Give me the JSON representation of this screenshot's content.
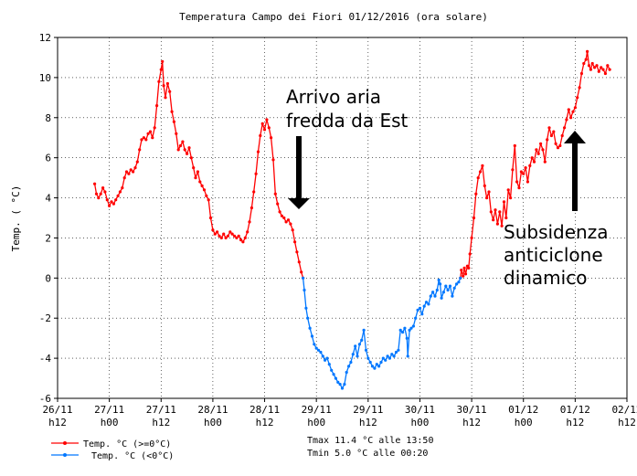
{
  "chart_data": {
    "type": "line",
    "title": "Temperatura Campo dei Fiori 01/12/2016 (ora solare)",
    "ylabel": "Temp. ( °C)",
    "xlabel": "",
    "ylim": [
      -6,
      12
    ],
    "yticks": [
      -6,
      -4,
      -2,
      0,
      2,
      4,
      6,
      8,
      10,
      12
    ],
    "xlim": [
      0,
      132
    ],
    "x_ticks": [
      {
        "x": 0,
        "line1": "26/11",
        "line2": "h12"
      },
      {
        "x": 12,
        "line1": "27/11",
        "line2": "h00"
      },
      {
        "x": 24,
        "line1": "27/11",
        "line2": "h12"
      },
      {
        "x": 36,
        "line1": "28/11",
        "line2": "h00"
      },
      {
        "x": 48,
        "line1": "28/11",
        "line2": "h12"
      },
      {
        "x": 60,
        "line1": "29/11",
        "line2": "h00"
      },
      {
        "x": 72,
        "line1": "29/11",
        "line2": "h12"
      },
      {
        "x": 84,
        "line1": "30/11",
        "line2": "h00"
      },
      {
        "x": 96,
        "line1": "30/11",
        "line2": "h12"
      },
      {
        "x": 108,
        "line1": "01/12",
        "line2": "h00"
      },
      {
        "x": 120,
        "line1": "01/12",
        "line2": "h12"
      },
      {
        "x": 132,
        "line1": "02/12",
        "line2": "h12"
      }
    ],
    "grid": true,
    "series": [
      {
        "name": "Temp. °C (>=0°C)",
        "color": "#ff0000",
        "segments": [
          [
            [
              8.6,
              4.7
            ],
            [
              9.0,
              4.2
            ],
            [
              9.5,
              4.0
            ],
            [
              10.0,
              4.2
            ],
            [
              10.5,
              4.5
            ],
            [
              11.0,
              4.3
            ],
            [
              11.5,
              3.9
            ],
            [
              12.0,
              3.6
            ],
            [
              12.5,
              3.8
            ],
            [
              13.0,
              3.7
            ],
            [
              13.5,
              3.9
            ],
            [
              14.0,
              4.1
            ],
            [
              14.5,
              4.3
            ],
            [
              15.0,
              4.5
            ],
            [
              15.5,
              5.0
            ],
            [
              16.0,
              5.3
            ],
            [
              16.5,
              5.2
            ],
            [
              17.0,
              5.4
            ],
            [
              17.5,
              5.3
            ],
            [
              18.0,
              5.5
            ],
            [
              18.5,
              5.8
            ],
            [
              19.0,
              6.4
            ],
            [
              19.5,
              6.9
            ],
            [
              20.0,
              7.0
            ],
            [
              20.5,
              6.9
            ],
            [
              21.0,
              7.2
            ],
            [
              21.5,
              7.3
            ],
            [
              22.0,
              7.0
            ],
            [
              22.5,
              7.5
            ],
            [
              23.0,
              8.6
            ],
            [
              23.5,
              9.8
            ],
            [
              24.0,
              10.4
            ],
            [
              24.3,
              10.8
            ],
            [
              24.6,
              9.6
            ],
            [
              25.0,
              9.0
            ],
            [
              25.5,
              9.7
            ],
            [
              26.0,
              9.3
            ],
            [
              26.5,
              8.3
            ],
            [
              27.0,
              7.8
            ],
            [
              27.5,
              7.2
            ],
            [
              28.0,
              6.4
            ],
            [
              28.5,
              6.6
            ],
            [
              29.0,
              6.8
            ],
            [
              29.5,
              6.4
            ],
            [
              30.0,
              6.2
            ],
            [
              30.5,
              6.5
            ],
            [
              31.0,
              6.0
            ],
            [
              31.5,
              5.5
            ],
            [
              32.0,
              5.0
            ],
            [
              32.5,
              5.3
            ],
            [
              33.0,
              4.8
            ],
            [
              33.5,
              4.6
            ],
            [
              34.0,
              4.4
            ],
            [
              34.5,
              4.1
            ],
            [
              35.0,
              3.9
            ],
            [
              35.5,
              3.0
            ],
            [
              36.0,
              2.4
            ],
            [
              36.5,
              2.2
            ],
            [
              37.0,
              2.3
            ],
            [
              37.5,
              2.1
            ],
            [
              38.0,
              2.0
            ],
            [
              38.5,
              2.2
            ],
            [
              39.0,
              2.0
            ],
            [
              39.5,
              2.1
            ],
            [
              40.0,
              2.3
            ],
            [
              40.5,
              2.2
            ],
            [
              41.0,
              2.1
            ],
            [
              41.5,
              2.0
            ],
            [
              42.0,
              2.1
            ],
            [
              42.5,
              1.9
            ],
            [
              43.0,
              1.8
            ],
            [
              43.5,
              2.0
            ],
            [
              44.0,
              2.3
            ],
            [
              44.5,
              2.8
            ],
            [
              45.0,
              3.5
            ],
            [
              45.5,
              4.3
            ],
            [
              46.0,
              5.2
            ],
            [
              46.5,
              6.3
            ],
            [
              47.0,
              7.1
            ],
            [
              47.5,
              7.7
            ],
            [
              48.0,
              7.4
            ],
            [
              48.5,
              7.9
            ],
            [
              49.0,
              7.5
            ],
            [
              49.5,
              7.0
            ],
            [
              50.0,
              5.9
            ],
            [
              50.5,
              4.2
            ],
            [
              51.0,
              3.7
            ],
            [
              51.5,
              3.3
            ],
            [
              52.0,
              3.1
            ],
            [
              52.5,
              3.0
            ],
            [
              53.0,
              2.8
            ],
            [
              53.5,
              2.9
            ],
            [
              54.0,
              2.7
            ],
            [
              54.5,
              2.4
            ],
            [
              55.0,
              1.8
            ],
            [
              55.5,
              1.3
            ],
            [
              56.0,
              0.8
            ],
            [
              56.5,
              0.3
            ],
            [
              56.9,
              0.0
            ]
          ],
          [
            [
              93.4,
              0.0
            ],
            [
              93.6,
              0.4
            ],
            [
              94.0,
              0.1
            ],
            [
              94.3,
              0.5
            ],
            [
              94.6,
              0.2
            ],
            [
              95.0,
              0.6
            ],
            [
              95.3,
              0.5
            ],
            [
              95.6,
              1.2
            ],
            [
              96.0,
              2.0
            ],
            [
              96.5,
              3.0
            ],
            [
              97.0,
              4.2
            ],
            [
              97.5,
              5.0
            ],
            [
              98.0,
              5.3
            ],
            [
              98.5,
              5.6
            ],
            [
              99.0,
              4.6
            ],
            [
              99.5,
              4.0
            ],
            [
              100.0,
              4.3
            ],
            [
              100.5,
              3.3
            ],
            [
              101.0,
              2.9
            ],
            [
              101.5,
              3.4
            ],
            [
              102.0,
              2.7
            ],
            [
              102.5,
              3.3
            ],
            [
              103.0,
              2.6
            ],
            [
              103.5,
              3.8
            ],
            [
              104.0,
              3.0
            ],
            [
              104.5,
              4.4
            ],
            [
              105.0,
              4.0
            ],
            [
              105.5,
              5.4
            ],
            [
              106.0,
              6.6
            ],
            [
              106.5,
              4.8
            ],
            [
              107.0,
              4.5
            ],
            [
              107.5,
              5.3
            ],
            [
              108.0,
              5.2
            ],
            [
              108.5,
              5.5
            ],
            [
              109.0,
              4.8
            ],
            [
              109.5,
              5.6
            ],
            [
              110.0,
              6.0
            ],
            [
              110.5,
              5.8
            ],
            [
              111.0,
              6.4
            ],
            [
              111.5,
              6.2
            ],
            [
              112.0,
              6.7
            ],
            [
              112.5,
              6.4
            ],
            [
              113.0,
              5.8
            ],
            [
              113.5,
              6.9
            ],
            [
              114.0,
              7.5
            ],
            [
              114.5,
              7.1
            ],
            [
              115.0,
              7.3
            ],
            [
              115.5,
              6.7
            ],
            [
              116.0,
              6.5
            ],
            [
              116.5,
              6.6
            ],
            [
              117.0,
              7.1
            ],
            [
              117.5,
              7.5
            ],
            [
              118.0,
              7.9
            ],
            [
              118.5,
              8.4
            ],
            [
              119.0,
              8.0
            ],
            [
              119.5,
              8.3
            ],
            [
              120.0,
              8.5
            ],
            [
              120.5,
              9.0
            ],
            [
              121.0,
              9.5
            ],
            [
              121.5,
              10.2
            ],
            [
              122.0,
              10.7
            ],
            [
              122.5,
              10.9
            ],
            [
              122.8,
              11.3
            ],
            [
              123.2,
              10.6
            ],
            [
              123.6,
              10.4
            ],
            [
              124.0,
              10.7
            ],
            [
              124.5,
              10.5
            ],
            [
              125.0,
              10.6
            ],
            [
              125.5,
              10.3
            ],
            [
              126.0,
              10.5
            ],
            [
              126.5,
              10.4
            ],
            [
              127.0,
              10.2
            ],
            [
              127.5,
              10.6
            ],
            [
              128.0,
              10.4
            ]
          ]
        ]
      },
      {
        "name": "Temp. °C (<0°C)",
        "color": "#0077ff",
        "segments": [
          [
            [
              56.9,
              0.0
            ],
            [
              57.2,
              -0.6
            ],
            [
              57.6,
              -1.5
            ],
            [
              58.0,
              -2.0
            ],
            [
              58.5,
              -2.5
            ],
            [
              59.0,
              -2.9
            ],
            [
              59.5,
              -3.3
            ],
            [
              60.0,
              -3.5
            ],
            [
              60.5,
              -3.6
            ],
            [
              61.0,
              -3.7
            ],
            [
              61.5,
              -3.9
            ],
            [
              62.0,
              -4.1
            ],
            [
              62.5,
              -4.0
            ],
            [
              63.0,
              -4.3
            ],
            [
              63.5,
              -4.6
            ],
            [
              64.0,
              -4.8
            ],
            [
              64.5,
              -5.0
            ],
            [
              65.0,
              -5.2
            ],
            [
              65.5,
              -5.3
            ],
            [
              66.0,
              -5.5
            ],
            [
              66.5,
              -5.3
            ],
            [
              67.0,
              -4.7
            ],
            [
              67.5,
              -4.4
            ],
            [
              68.0,
              -4.2
            ],
            [
              68.5,
              -3.8
            ],
            [
              69.0,
              -3.4
            ],
            [
              69.5,
              -3.9
            ],
            [
              70.0,
              -3.3
            ],
            [
              70.5,
              -3.1
            ],
            [
              71.0,
              -2.6
            ],
            [
              71.5,
              -3.6
            ],
            [
              72.0,
              -4.0
            ],
            [
              72.5,
              -4.2
            ],
            [
              73.0,
              -4.4
            ],
            [
              73.5,
              -4.5
            ],
            [
              74.0,
              -4.3
            ],
            [
              74.5,
              -4.4
            ],
            [
              75.0,
              -4.2
            ],
            [
              75.5,
              -4.0
            ],
            [
              76.0,
              -4.1
            ],
            [
              76.5,
              -3.9
            ],
            [
              77.0,
              -4.0
            ],
            [
              77.5,
              -3.8
            ],
            [
              78.0,
              -3.9
            ],
            [
              78.5,
              -3.7
            ],
            [
              79.0,
              -3.6
            ],
            [
              79.5,
              -2.6
            ],
            [
              80.0,
              -2.7
            ],
            [
              80.5,
              -2.5
            ],
            [
              81.0,
              -3.0
            ],
            [
              81.2,
              -3.9
            ],
            [
              81.6,
              -2.6
            ],
            [
              82.0,
              -2.5
            ],
            [
              82.5,
              -2.4
            ],
            [
              83.0,
              -2.0
            ],
            [
              83.5,
              -1.6
            ],
            [
              84.0,
              -1.5
            ],
            [
              84.5,
              -1.8
            ],
            [
              85.0,
              -1.4
            ],
            [
              85.5,
              -1.2
            ],
            [
              86.0,
              -1.3
            ],
            [
              86.5,
              -0.9
            ],
            [
              87.0,
              -0.7
            ],
            [
              87.5,
              -0.9
            ],
            [
              88.0,
              -0.6
            ],
            [
              88.4,
              -0.1
            ],
            [
              88.7,
              -0.3
            ],
            [
              89.0,
              -1.0
            ],
            [
              89.5,
              -0.7
            ],
            [
              90.0,
              -0.4
            ],
            [
              90.5,
              -0.6
            ],
            [
              91.0,
              -0.4
            ],
            [
              91.5,
              -0.9
            ],
            [
              92.0,
              -0.5
            ],
            [
              92.5,
              -0.3
            ],
            [
              93.0,
              -0.2
            ],
            [
              93.4,
              0.0
            ]
          ]
        ]
      }
    ],
    "legend": [
      {
        "label": "Temp. °C (>=0°C)",
        "color": "#ff0000"
      },
      {
        "label": "Temp. °C (<0°C)",
        "color": "#0077ff"
      }
    ],
    "stats": {
      "tmax": "Tmax 11.4 °C alle 13:50",
      "tmin": "Tmin 5.0 °C alle 00:20"
    },
    "annotations": [
      {
        "lines": [
          "Arrivo aria",
          "fredda da Est"
        ],
        "arrow": "down"
      },
      {
        "lines": [
          "Subsidenza",
          "anticiclone",
          "dinamico"
        ],
        "arrow": "up"
      }
    ]
  }
}
